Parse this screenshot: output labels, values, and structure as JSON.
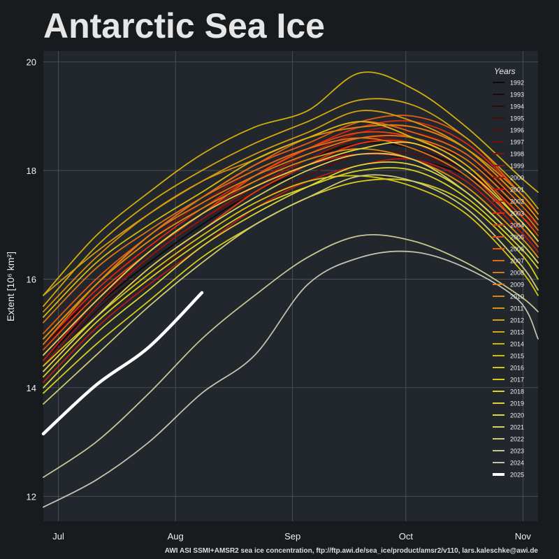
{
  "title": "Antarctic Sea Ice",
  "footer": "AWI ASI SSMI+AMSR2 sea ice concentration, ftp://ftp.awi.de/sea_ice/product/amsr2/v110, lars.kaleschke@awi.de",
  "chart_data": {
    "type": "line",
    "title": "Antarctic Sea Ice",
    "ylabel": "Extent [10⁶ km²]",
    "xlabel": "",
    "ylim": [
      11.54,
      20.2
    ],
    "xlim": [
      "06-27",
      "11-05"
    ],
    "yticks": [
      12,
      14,
      16,
      18,
      20
    ],
    "xticks": [
      {
        "date": "07-01",
        "label": "Jul"
      },
      {
        "date": "08-01",
        "label": "Aug"
      },
      {
        "date": "09-01",
        "label": "Sep"
      },
      {
        "date": "10-01",
        "label": "Oct"
      },
      {
        "date": "11-01",
        "label": "Nov"
      }
    ],
    "grid": true,
    "legend": {
      "title": "Years",
      "placement": "top-right"
    },
    "x": [
      "06-27",
      "07-11",
      "07-25",
      "08-08",
      "08-22",
      "09-05",
      "09-19",
      "10-03",
      "10-17",
      "10-31",
      "11-05"
    ],
    "series": [
      {
        "name": "1992",
        "color": "#0a0a0a",
        "values": [
          14.5,
          15.5,
          16.3,
          17.0,
          17.6,
          18.0,
          18.3,
          18.2,
          17.9,
          17.2,
          16.9
        ]
      },
      {
        "name": "1993",
        "color": "#1f0808",
        "values": [
          14.8,
          15.7,
          16.5,
          17.2,
          17.7,
          18.2,
          18.5,
          18.4,
          18.0,
          17.3,
          17.0
        ]
      },
      {
        "name": "1994",
        "color": "#300a0a",
        "values": [
          14.3,
          15.4,
          16.2,
          16.9,
          17.5,
          18.0,
          18.4,
          18.5,
          18.2,
          17.4,
          17.1
        ]
      },
      {
        "name": "1995",
        "color": "#450c0c",
        "values": [
          14.7,
          15.8,
          16.6,
          17.3,
          17.9,
          18.3,
          18.6,
          18.6,
          18.1,
          17.1,
          16.8
        ]
      },
      {
        "name": "1996",
        "color": "#5a0e0e",
        "values": [
          14.2,
          15.2,
          16.0,
          16.8,
          17.4,
          17.9,
          18.3,
          18.3,
          17.9,
          17.0,
          16.6
        ]
      },
      {
        "name": "1997",
        "color": "#6e1010",
        "values": [
          14.6,
          15.6,
          16.4,
          17.1,
          17.6,
          18.1,
          18.5,
          18.7,
          18.3,
          17.5,
          17.2
        ]
      },
      {
        "name": "1998",
        "color": "#821212",
        "values": [
          14.9,
          15.9,
          16.7,
          17.4,
          18.0,
          18.4,
          18.6,
          18.5,
          18.0,
          17.2,
          16.9
        ]
      },
      {
        "name": "1999",
        "color": "#961414",
        "values": [
          14.4,
          15.5,
          16.4,
          17.1,
          17.7,
          18.2,
          18.6,
          18.6,
          18.2,
          17.3,
          17.0
        ]
      },
      {
        "name": "2000",
        "color": "#aa1616",
        "values": [
          14.6,
          15.6,
          16.5,
          17.2,
          17.8,
          18.3,
          18.7,
          18.8,
          18.4,
          17.5,
          17.1
        ]
      },
      {
        "name": "2001",
        "color": "#be1818",
        "values": [
          14.1,
          15.1,
          15.9,
          16.6,
          17.3,
          17.8,
          18.1,
          18.2,
          17.8,
          16.9,
          16.5
        ]
      },
      {
        "name": "2002",
        "color": "#d01a1a",
        "values": [
          14.5,
          15.6,
          16.5,
          17.2,
          17.7,
          18.1,
          18.3,
          18.2,
          17.7,
          16.8,
          16.4
        ]
      },
      {
        "name": "2003",
        "color": "#dd2a12",
        "values": [
          14.8,
          15.8,
          16.6,
          17.3,
          17.9,
          18.4,
          18.8,
          18.9,
          18.5,
          17.6,
          17.2
        ]
      },
      {
        "name": "2004",
        "color": "#e63a10",
        "values": [
          14.3,
          15.3,
          16.2,
          16.9,
          17.6,
          18.1,
          18.5,
          18.5,
          18.0,
          17.0,
          16.6
        ]
      },
      {
        "name": "2005",
        "color": "#e84a12",
        "values": [
          14.7,
          15.7,
          16.5,
          17.2,
          17.9,
          18.4,
          18.7,
          18.6,
          18.1,
          17.2,
          16.8
        ]
      },
      {
        "name": "2006",
        "color": "#e85a14",
        "values": [
          15.0,
          16.0,
          16.8,
          17.5,
          18.1,
          18.5,
          18.9,
          19.0,
          18.6,
          17.6,
          17.2
        ]
      },
      {
        "name": "2007",
        "color": "#e06a1a",
        "values": [
          14.9,
          15.9,
          16.8,
          17.5,
          18.1,
          18.6,
          18.9,
          18.7,
          18.3,
          17.4,
          17.0
        ]
      },
      {
        "name": "2008",
        "color": "#dc7418",
        "values": [
          15.2,
          16.2,
          16.9,
          17.5,
          18.0,
          18.4,
          18.6,
          18.4,
          17.9,
          17.0,
          16.6
        ]
      },
      {
        "name": "2009",
        "color": "#d87e16",
        "values": [
          14.8,
          15.9,
          16.8,
          17.4,
          17.9,
          18.3,
          18.6,
          18.6,
          18.2,
          17.3,
          16.9
        ]
      },
      {
        "name": "2010",
        "color": "#d88a12",
        "values": [
          15.4,
          16.4,
          17.2,
          17.8,
          18.2,
          18.6,
          18.8,
          18.8,
          18.4,
          17.6,
          17.2
        ]
      },
      {
        "name": "2011",
        "color": "#d89410",
        "values": [
          14.9,
          15.9,
          16.7,
          17.3,
          17.8,
          18.2,
          18.4,
          18.2,
          17.7,
          16.8,
          16.4
        ]
      },
      {
        "name": "2012",
        "color": "#d49e0e",
        "values": [
          15.7,
          16.5,
          17.2,
          17.8,
          18.3,
          18.7,
          19.1,
          18.9,
          18.4,
          17.5,
          17.1
        ]
      },
      {
        "name": "2013",
        "color": "#d2a80c",
        "values": [
          15.5,
          16.6,
          17.4,
          18.0,
          18.5,
          18.9,
          19.3,
          19.2,
          18.6,
          17.7,
          17.3
        ]
      },
      {
        "name": "2014",
        "color": "#d0b00c",
        "values": [
          15.7,
          16.8,
          17.6,
          18.3,
          18.8,
          19.1,
          19.8,
          19.5,
          18.8,
          17.9,
          17.6
        ]
      },
      {
        "name": "2015",
        "color": "#d2ba10",
        "values": [
          15.3,
          16.3,
          17.0,
          17.6,
          18.2,
          18.6,
          18.9,
          18.6,
          18.1,
          17.1,
          16.7
        ]
      },
      {
        "name": "2016",
        "color": "#d4c414",
        "values": [
          14.4,
          15.3,
          16.1,
          16.8,
          17.4,
          17.8,
          17.9,
          17.7,
          17.2,
          16.2,
          15.7
        ]
      },
      {
        "name": "2017",
        "color": "#d6cc1a",
        "values": [
          13.9,
          14.8,
          15.6,
          16.4,
          17.0,
          17.5,
          17.8,
          17.8,
          17.4,
          16.5,
          16.0
        ]
      },
      {
        "name": "2018",
        "color": "#d8d226",
        "values": [
          14.2,
          15.2,
          16.0,
          16.7,
          17.3,
          17.7,
          18.0,
          18.0,
          17.5,
          16.6,
          16.2
        ]
      },
      {
        "name": "2019",
        "color": "#dad636",
        "values": [
          14.0,
          15.0,
          15.8,
          16.6,
          17.2,
          17.7,
          18.1,
          18.1,
          17.6,
          16.7,
          16.3
        ]
      },
      {
        "name": "2020",
        "color": "#d8d64a",
        "values": [
          14.6,
          15.6,
          16.5,
          17.2,
          17.7,
          18.1,
          18.4,
          18.5,
          18.0,
          17.1,
          16.7
        ]
      },
      {
        "name": "2021",
        "color": "#d4d260",
        "values": [
          14.3,
          15.3,
          16.2,
          16.9,
          17.5,
          18.0,
          18.3,
          18.2,
          17.6,
          16.7,
          16.3
        ]
      },
      {
        "name": "2022",
        "color": "#cecc78",
        "values": [
          13.7,
          14.6,
          15.5,
          16.3,
          17.0,
          17.5,
          17.9,
          17.8,
          17.3,
          16.3,
          15.8
        ]
      },
      {
        "name": "2023",
        "color": "#c8c690",
        "values": [
          12.35,
          13.0,
          13.9,
          14.9,
          15.7,
          16.4,
          16.8,
          16.7,
          16.3,
          15.7,
          15.4
        ]
      },
      {
        "name": "2024",
        "color": "#c2c2b0",
        "values": [
          11.8,
          12.3,
          13.0,
          13.9,
          14.6,
          15.9,
          16.4,
          16.5,
          16.2,
          15.6,
          14.9
        ]
      },
      {
        "name": "2025",
        "color": "#ffffff",
        "values": [
          13.15,
          14.05,
          14.75,
          15.75,
          null,
          null,
          null,
          null,
          null,
          null,
          null
        ]
      }
    ]
  }
}
